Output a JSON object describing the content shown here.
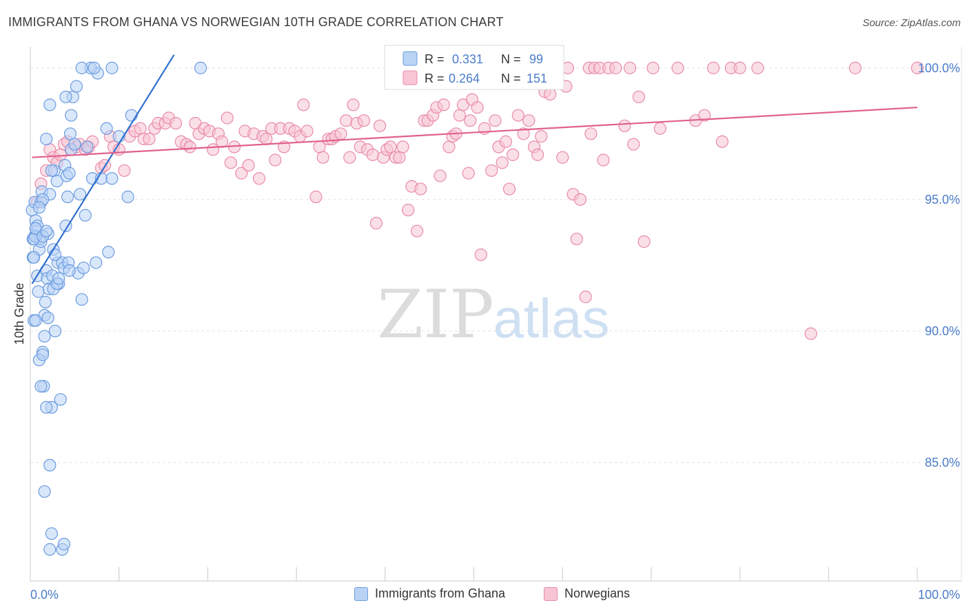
{
  "header": {
    "title": "IMMIGRANTS FROM GHANA VS NORWEGIAN 10TH GRADE CORRELATION CHART",
    "source": "Source: ZipAtlas.com"
  },
  "watermark": {
    "zip": "ZIP",
    "atlas": "atlas"
  },
  "colors": {
    "blue_fill": "#b9d3f5",
    "blue_stroke": "#6b9be0",
    "blue_line": "#2f6fcf",
    "pink_fill": "#f7c5d4",
    "pink_stroke": "#e88aa8",
    "pink_line": "#e0608c",
    "tick_label": "#4a7cc9",
    "grid": "#e3e3e3"
  },
  "legend": {
    "rows": [
      {
        "r_label": "R =",
        "r_value": "0.331",
        "n_label": "N =",
        "n_value": "99"
      },
      {
        "r_label": "R =",
        "r_value": "0.264",
        "n_label": "N =",
        "n_value": "151"
      }
    ]
  },
  "chart_data": {
    "type": "scatter",
    "title": "IMMIGRANTS FROM GHANA VS NORWEGIAN 10TH GRADE CORRELATION CHART",
    "xlabel": "",
    "ylabel": "10th Grade",
    "xlim": [
      0,
      100
    ],
    "ylim": [
      80.5,
      100.7
    ],
    "x_tick_labels": [
      "0.0%",
      "100.0%"
    ],
    "y_ticks": [
      85,
      90,
      95,
      100
    ],
    "y_tick_labels": [
      "85.0%",
      "90.0%",
      "95.0%",
      "100.0%"
    ],
    "grid": true,
    "legend_position": "top-center",
    "series": [
      {
        "name": "Immigrants from Ghana",
        "r": 0.331,
        "n": 99,
        "trend": {
          "x": [
            0.2,
            16.2
          ],
          "y": [
            91.8,
            100.5
          ]
        },
        "points": [
          [
            0.2,
            94.6
          ],
          [
            0.3,
            93.5
          ],
          [
            0.3,
            92.8
          ],
          [
            0.4,
            90.4
          ],
          [
            0.5,
            93.6
          ],
          [
            0.5,
            94.9
          ],
          [
            0.6,
            94.2
          ],
          [
            0.7,
            93.8
          ],
          [
            0.8,
            92.1
          ],
          [
            0.9,
            91.5
          ],
          [
            1.0,
            93.1
          ],
          [
            1.1,
            93.5
          ],
          [
            1.2,
            94.9
          ],
          [
            1.3,
            95.3
          ],
          [
            1.4,
            89.2
          ],
          [
            1.5,
            87.9
          ],
          [
            1.6,
            90.6
          ],
          [
            1.7,
            91.1
          ],
          [
            1.8,
            92.3
          ],
          [
            1.9,
            92.0
          ],
          [
            2.0,
            93.7
          ],
          [
            2.1,
            91.6
          ],
          [
            2.2,
            95.2
          ],
          [
            2.4,
            87.1
          ],
          [
            2.5,
            92.1
          ],
          [
            2.6,
            93.1
          ],
          [
            2.7,
            96.1
          ],
          [
            2.8,
            90.0
          ],
          [
            3.0,
            95.7
          ],
          [
            3.1,
            92.6
          ],
          [
            3.2,
            91.8
          ],
          [
            3.4,
            87.4
          ],
          [
            3.6,
            92.6
          ],
          [
            3.8,
            92.4
          ],
          [
            3.9,
            96.3
          ],
          [
            4.0,
            94.0
          ],
          [
            4.1,
            95.9
          ],
          [
            4.2,
            95.1
          ],
          [
            4.3,
            92.6
          ],
          [
            4.4,
            96.0
          ],
          [
            4.5,
            97.5
          ],
          [
            4.6,
            96.9
          ],
          [
            4.8,
            98.9
          ],
          [
            5.0,
            97.1
          ],
          [
            5.2,
            99.3
          ],
          [
            5.4,
            92.2
          ],
          [
            5.6,
            95.2
          ],
          [
            5.8,
            91.2
          ],
          [
            6.0,
            92.4
          ],
          [
            6.2,
            94.4
          ],
          [
            6.4,
            97.0
          ],
          [
            7.0,
            95.8
          ],
          [
            7.4,
            92.6
          ],
          [
            7.6,
            99.8
          ],
          [
            8.0,
            95.8
          ],
          [
            8.6,
            97.7
          ],
          [
            8.8,
            93.0
          ],
          [
            9.2,
            95.8
          ],
          [
            10.0,
            97.4
          ],
          [
            11.0,
            95.1
          ],
          [
            11.4,
            98.2
          ],
          [
            6.8,
            100.0
          ],
          [
            7.2,
            100.0
          ],
          [
            5.8,
            100.0
          ],
          [
            9.2,
            100.0
          ],
          [
            19.2,
            100.0
          ],
          [
            2.2,
            98.6
          ],
          [
            4.0,
            98.9
          ],
          [
            4.6,
            98.2
          ],
          [
            1.8,
            97.3
          ],
          [
            2.4,
            96.1
          ],
          [
            1.4,
            95.0
          ],
          [
            0.8,
            94.0
          ],
          [
            1.2,
            93.4
          ],
          [
            0.6,
            93.6
          ],
          [
            2.6,
            91.6
          ],
          [
            2.0,
            90.5
          ],
          [
            1.6,
            89.8
          ],
          [
            0.6,
            90.4
          ],
          [
            1.0,
            88.9
          ],
          [
            1.2,
            87.9
          ],
          [
            1.8,
            87.1
          ],
          [
            2.2,
            84.9
          ],
          [
            1.6,
            83.9
          ],
          [
            2.4,
            82.3
          ],
          [
            2.2,
            81.7
          ],
          [
            3.6,
            81.7
          ],
          [
            3.8,
            81.9
          ],
          [
            1.0,
            94.7
          ],
          [
            0.4,
            93.5
          ],
          [
            0.6,
            93.9
          ],
          [
            1.4,
            93.6
          ],
          [
            3.0,
            91.8
          ],
          [
            4.4,
            92.3
          ],
          [
            3.2,
            92.0
          ],
          [
            0.4,
            92.8
          ],
          [
            1.8,
            93.8
          ],
          [
            2.8,
            92.9
          ],
          [
            1.4,
            89.1
          ]
        ]
      },
      {
        "name": "Norwegians",
        "r": 0.264,
        "n": 151,
        "trend": {
          "x": [
            0.2,
            100
          ],
          "y": [
            96.6,
            98.5
          ]
        },
        "points": [
          [
            0.8,
            94.9
          ],
          [
            1.2,
            95.6
          ],
          [
            1.8,
            96.1
          ],
          [
            2.2,
            96.9
          ],
          [
            2.6,
            96.6
          ],
          [
            3.0,
            96.4
          ],
          [
            3.4,
            96.7
          ],
          [
            3.8,
            97.1
          ],
          [
            4.2,
            97.2
          ],
          [
            4.6,
            96.9
          ],
          [
            5.2,
            97.0
          ],
          [
            5.6,
            97.1
          ],
          [
            6.2,
            96.9
          ],
          [
            6.6,
            97.0
          ],
          [
            7.0,
            97.2
          ],
          [
            8.0,
            96.2
          ],
          [
            8.4,
            96.3
          ],
          [
            9.0,
            97.4
          ],
          [
            9.4,
            97.0
          ],
          [
            10.0,
            96.9
          ],
          [
            10.6,
            96.1
          ],
          [
            11.2,
            97.4
          ],
          [
            11.8,
            97.6
          ],
          [
            12.4,
            97.7
          ],
          [
            12.8,
            97.3
          ],
          [
            13.4,
            97.3
          ],
          [
            14.0,
            97.7
          ],
          [
            14.4,
            97.9
          ],
          [
            15.2,
            97.9
          ],
          [
            15.6,
            98.1
          ],
          [
            16.4,
            97.9
          ],
          [
            17.0,
            97.2
          ],
          [
            17.6,
            97.1
          ],
          [
            18.0,
            97.0
          ],
          [
            18.6,
            97.9
          ],
          [
            19.0,
            97.5
          ],
          [
            19.6,
            97.7
          ],
          [
            20.2,
            97.6
          ],
          [
            20.6,
            96.9
          ],
          [
            21.2,
            97.5
          ],
          [
            21.6,
            97.2
          ],
          [
            22.2,
            98.1
          ],
          [
            22.6,
            96.4
          ],
          [
            23.0,
            97.0
          ],
          [
            23.8,
            96.0
          ],
          [
            24.2,
            97.6
          ],
          [
            24.6,
            96.3
          ],
          [
            25.2,
            97.5
          ],
          [
            25.8,
            95.8
          ],
          [
            26.2,
            97.4
          ],
          [
            26.6,
            97.3
          ],
          [
            27.2,
            97.7
          ],
          [
            27.6,
            96.5
          ],
          [
            28.2,
            97.7
          ],
          [
            28.6,
            97.0
          ],
          [
            29.2,
            97.7
          ],
          [
            29.8,
            97.6
          ],
          [
            30.4,
            97.4
          ],
          [
            30.8,
            98.6
          ],
          [
            31.2,
            97.6
          ],
          [
            32.2,
            95.1
          ],
          [
            32.6,
            97.0
          ],
          [
            33.0,
            96.6
          ],
          [
            33.6,
            97.3
          ],
          [
            34.0,
            97.3
          ],
          [
            34.4,
            97.4
          ],
          [
            35.0,
            97.5
          ],
          [
            35.6,
            98.0
          ],
          [
            36.0,
            96.6
          ],
          [
            36.4,
            98.6
          ],
          [
            36.8,
            97.9
          ],
          [
            37.2,
            97.0
          ],
          [
            37.6,
            98.0
          ],
          [
            38.0,
            96.9
          ],
          [
            38.6,
            96.7
          ],
          [
            39.0,
            94.1
          ],
          [
            39.4,
            97.8
          ],
          [
            39.8,
            96.6
          ],
          [
            40.2,
            96.9
          ],
          [
            40.6,
            97.0
          ],
          [
            41.2,
            96.6
          ],
          [
            41.6,
            96.6
          ],
          [
            42.0,
            97.0
          ],
          [
            42.6,
            94.6
          ],
          [
            43.0,
            95.5
          ],
          [
            43.6,
            93.8
          ],
          [
            44.0,
            95.4
          ],
          [
            44.4,
            98.0
          ],
          [
            44.8,
            98.0
          ],
          [
            45.4,
            98.2
          ],
          [
            45.8,
            98.5
          ],
          [
            46.2,
            95.9
          ],
          [
            46.6,
            98.6
          ],
          [
            47.2,
            97.0
          ],
          [
            47.6,
            97.4
          ],
          [
            48.0,
            97.5
          ],
          [
            48.4,
            98.2
          ],
          [
            48.8,
            98.6
          ],
          [
            49.4,
            96.0
          ],
          [
            49.8,
            98.8
          ],
          [
            50.4,
            98.5
          ],
          [
            50.8,
            92.9
          ],
          [
            51.2,
            97.7
          ],
          [
            52.0,
            96.1
          ],
          [
            52.4,
            98.0
          ],
          [
            52.8,
            97.0
          ],
          [
            53.2,
            96.4
          ],
          [
            53.6,
            97.2
          ],
          [
            54.0,
            95.4
          ],
          [
            54.4,
            96.7
          ],
          [
            55.0,
            98.2
          ],
          [
            55.6,
            97.5
          ],
          [
            56.2,
            98.0
          ],
          [
            56.8,
            97.0
          ],
          [
            57.2,
            96.7
          ],
          [
            57.6,
            97.4
          ],
          [
            58.0,
            99.1
          ],
          [
            58.6,
            99.0
          ],
          [
            60.0,
            96.6
          ],
          [
            60.4,
            99.3
          ],
          [
            61.2,
            95.2
          ],
          [
            61.6,
            93.5
          ],
          [
            62.0,
            95.0
          ],
          [
            62.6,
            91.3
          ],
          [
            63.0,
            100.0
          ],
          [
            63.6,
            100.0
          ],
          [
            64.2,
            100.0
          ],
          [
            64.6,
            96.5
          ],
          [
            65.2,
            100.0
          ],
          [
            66.0,
            100.0
          ],
          [
            67.0,
            97.8
          ],
          [
            67.6,
            100.0
          ],
          [
            68.0,
            97.1
          ],
          [
            68.6,
            98.9
          ],
          [
            69.2,
            93.4
          ],
          [
            70.2,
            100.0
          ],
          [
            71.0,
            97.7
          ],
          [
            73.0,
            100.0
          ],
          [
            75.0,
            98.0
          ],
          [
            76.0,
            98.2
          ],
          [
            77.0,
            100.0
          ],
          [
            78.0,
            97.2
          ],
          [
            79.0,
            100.0
          ],
          [
            80.0,
            100.0
          ],
          [
            82.0,
            100.0
          ],
          [
            88.0,
            89.9
          ],
          [
            93.0,
            100.0
          ],
          [
            100.0,
            100.0
          ],
          [
            60.6,
            100.0
          ],
          [
            63.2,
            97.5
          ],
          [
            49.6,
            98.0
          ]
        ]
      }
    ]
  }
}
